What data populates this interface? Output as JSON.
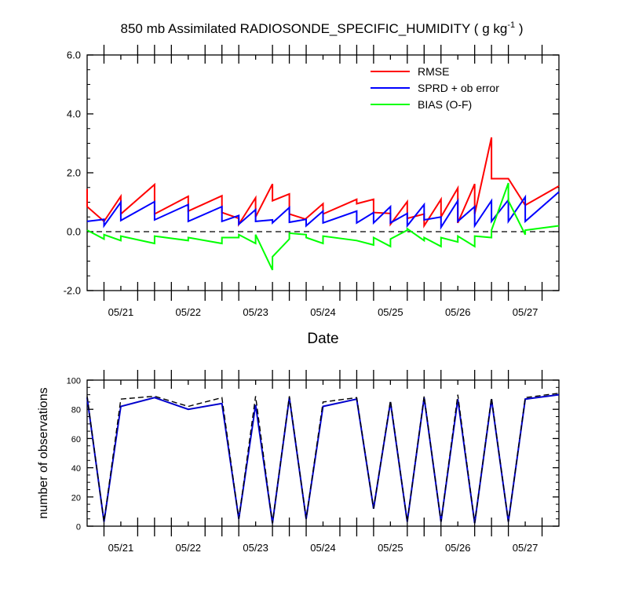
{
  "title_main": "850 mb Assimilated RADIOSONDE_SPECIFIC_HUMIDITY ( g kg",
  "title_exp": "-1",
  "title_end": " )",
  "colors": {
    "rmse": "#ff0000",
    "sprd": "#0000ff",
    "bias": "#00ff00",
    "axis": "#000000"
  },
  "chart_data": [
    {
      "type": "line",
      "name": "top-panel",
      "title": "850 mb Assimilated RADIOSONDE_SPECIFIC_HUMIDITY ( g kg-1 )",
      "xlabel": "Date",
      "ylabel": "",
      "xlim": [
        20.5,
        27.5
      ],
      "ylim": [
        -2.0,
        6.0
      ],
      "yticks": [
        -2.0,
        0.0,
        2.0,
        4.0,
        6.0
      ],
      "ytick_labels": [
        "-2.0",
        "0.0",
        "2.0",
        "4.0",
        "6.0"
      ],
      "xticks": [
        21,
        22,
        23,
        24,
        25,
        26,
        27
      ],
      "xtick_labels": [
        "05/21",
        "05/22",
        "05/23",
        "05/24",
        "05/25",
        "05/26",
        "05/27"
      ],
      "legend": [
        {
          "label": "RMSE",
          "series": "rmse"
        },
        {
          "label": "SPRD + ob error",
          "series": "sprd"
        },
        {
          "label": "BIAS (O-F)",
          "series": "bias"
        }
      ],
      "legend_position": "top-right",
      "reference_line": {
        "y": 0.0,
        "style": "dashed"
      },
      "series": [
        {
          "name": "rmse",
          "x": [
            20.5,
            20.5,
            20.75,
            20.75,
            21.0,
            21.0,
            21.5,
            21.5,
            22.0,
            22.0,
            22.5,
            22.5,
            22.75,
            22.75,
            23.0,
            23.0,
            23.25,
            23.25,
            23.5,
            23.5,
            23.75,
            23.75,
            24.0,
            24.0,
            24.5,
            24.5,
            24.75,
            24.75,
            25.0,
            25.0,
            25.25,
            25.25,
            25.5,
            25.5,
            25.75,
            25.75,
            26.0,
            26.0,
            26.25,
            26.25,
            26.5,
            26.5,
            26.75,
            26.75,
            27.0,
            27.0,
            27.5
          ],
          "y": [
            1.45,
            0.85,
            0.35,
            0.35,
            1.2,
            0.6,
            1.6,
            0.6,
            1.2,
            0.7,
            1.22,
            0.65,
            0.45,
            0.25,
            1.15,
            0.5,
            1.62,
            1.05,
            1.28,
            0.6,
            0.42,
            0.45,
            0.95,
            0.6,
            1.1,
            0.95,
            1.1,
            0.65,
            0.62,
            0.25,
            1.02,
            0.45,
            0.6,
            0.2,
            1.1,
            0.5,
            1.48,
            0.3,
            1.62,
            0.6,
            3.2,
            1.8,
            1.8,
            1.8,
            0.9,
            0.9,
            1.55
          ]
        },
        {
          "name": "sprd",
          "x": [
            20.5,
            20.75,
            20.75,
            21.0,
            21.0,
            21.5,
            21.5,
            22.0,
            22.0,
            22.5,
            22.5,
            22.75,
            22.75,
            23.0,
            23.0,
            23.25,
            23.25,
            23.5,
            23.5,
            23.75,
            23.75,
            24.0,
            24.0,
            24.5,
            24.5,
            24.75,
            24.75,
            25.0,
            25.0,
            25.25,
            25.25,
            25.5,
            25.5,
            25.75,
            25.75,
            26.0,
            26.0,
            26.25,
            26.25,
            26.5,
            26.5,
            26.75,
            26.75,
            27.0,
            27.0,
            27.5
          ],
          "y": [
            0.35,
            0.42,
            0.2,
            1.0,
            0.38,
            1.02,
            0.4,
            0.92,
            0.35,
            0.85,
            0.35,
            0.55,
            0.25,
            0.75,
            0.35,
            0.4,
            0.3,
            0.82,
            0.32,
            0.42,
            0.2,
            0.7,
            0.3,
            0.7,
            0.3,
            0.65,
            0.3,
            0.85,
            0.3,
            0.62,
            0.2,
            0.92,
            0.4,
            0.5,
            0.15,
            1.05,
            0.35,
            0.85,
            0.2,
            1.05,
            0.35,
            1.08,
            0.35,
            1.18,
            0.35,
            1.35
          ]
        },
        {
          "name": "bias",
          "x": [
            20.5,
            20.75,
            20.75,
            21.0,
            21.0,
            21.5,
            21.5,
            22.0,
            22.0,
            22.5,
            22.5,
            22.75,
            22.75,
            23.0,
            23.0,
            23.25,
            23.25,
            23.5,
            23.5,
            23.75,
            23.75,
            24.0,
            24.0,
            24.5,
            24.5,
            24.75,
            24.75,
            25.0,
            25.0,
            25.25,
            25.25,
            25.5,
            25.5,
            25.75,
            25.75,
            26.0,
            26.0,
            26.25,
            26.25,
            26.5,
            26.5,
            26.75,
            26.75,
            27.0,
            27.0,
            27.5
          ],
          "y": [
            0.05,
            -0.25,
            -0.1,
            -0.3,
            -0.15,
            -0.4,
            -0.15,
            -0.3,
            -0.2,
            -0.4,
            -0.2,
            -0.2,
            -0.1,
            -0.4,
            -0.1,
            -1.3,
            -0.85,
            -0.25,
            -0.05,
            -0.1,
            -0.2,
            -0.4,
            -0.15,
            -0.3,
            -0.3,
            -0.45,
            -0.2,
            -0.5,
            -0.25,
            0.05,
            0.1,
            -0.3,
            -0.2,
            -0.5,
            -0.2,
            -0.35,
            -0.15,
            -0.5,
            -0.15,
            -0.2,
            0.05,
            1.65,
            1.05,
            -0.1,
            0.05,
            0.2
          ]
        }
      ]
    },
    {
      "type": "line",
      "name": "bottom-panel",
      "title": "",
      "xlabel": "",
      "ylabel": "number of observations",
      "xlim": [
        20.5,
        27.5
      ],
      "ylim": [
        0,
        100
      ],
      "yticks": [
        0,
        20,
        40,
        60,
        80,
        100
      ],
      "ytick_labels": [
        "0",
        "20",
        "40",
        "60",
        "80",
        "100"
      ],
      "xticks": [
        21,
        22,
        23,
        24,
        25,
        26,
        27
      ],
      "xtick_labels": [
        "05/21",
        "05/22",
        "05/23",
        "05/24",
        "05/25",
        "05/26",
        "05/27"
      ],
      "series": [
        {
          "name": "assimilated",
          "style": "solid",
          "color": "#0000cc",
          "x": [
            20.5,
            20.75,
            21.0,
            21.5,
            22.0,
            22.5,
            22.75,
            23.0,
            23.25,
            23.5,
            23.75,
            24.0,
            24.5,
            24.75,
            25.0,
            25.25,
            25.5,
            25.75,
            26.0,
            26.25,
            26.5,
            26.75,
            27.0,
            27.5
          ],
          "y": [
            88,
            3,
            82,
            88,
            80,
            84,
            5,
            83,
            2,
            88,
            5,
            82,
            87,
            12,
            85,
            3,
            88,
            3,
            87,
            2,
            87,
            3,
            87,
            90
          ]
        },
        {
          "name": "possible",
          "style": "dashed",
          "color": "#000000",
          "x": [
            20.5,
            20.75,
            21.0,
            21.5,
            22.0,
            22.5,
            22.75,
            23.0,
            23.25,
            23.5,
            23.75,
            24.0,
            24.5,
            24.75,
            25.0,
            25.25,
            25.5,
            25.75,
            26.0,
            26.25,
            26.5,
            26.75,
            27.0,
            27.5
          ],
          "y": [
            89,
            3,
            87,
            89,
            82,
            88,
            5,
            89,
            2,
            89,
            5,
            85,
            88,
            12,
            86,
            3,
            89,
            3,
            90,
            2,
            88,
            3,
            88,
            91
          ]
        }
      ]
    }
  ]
}
